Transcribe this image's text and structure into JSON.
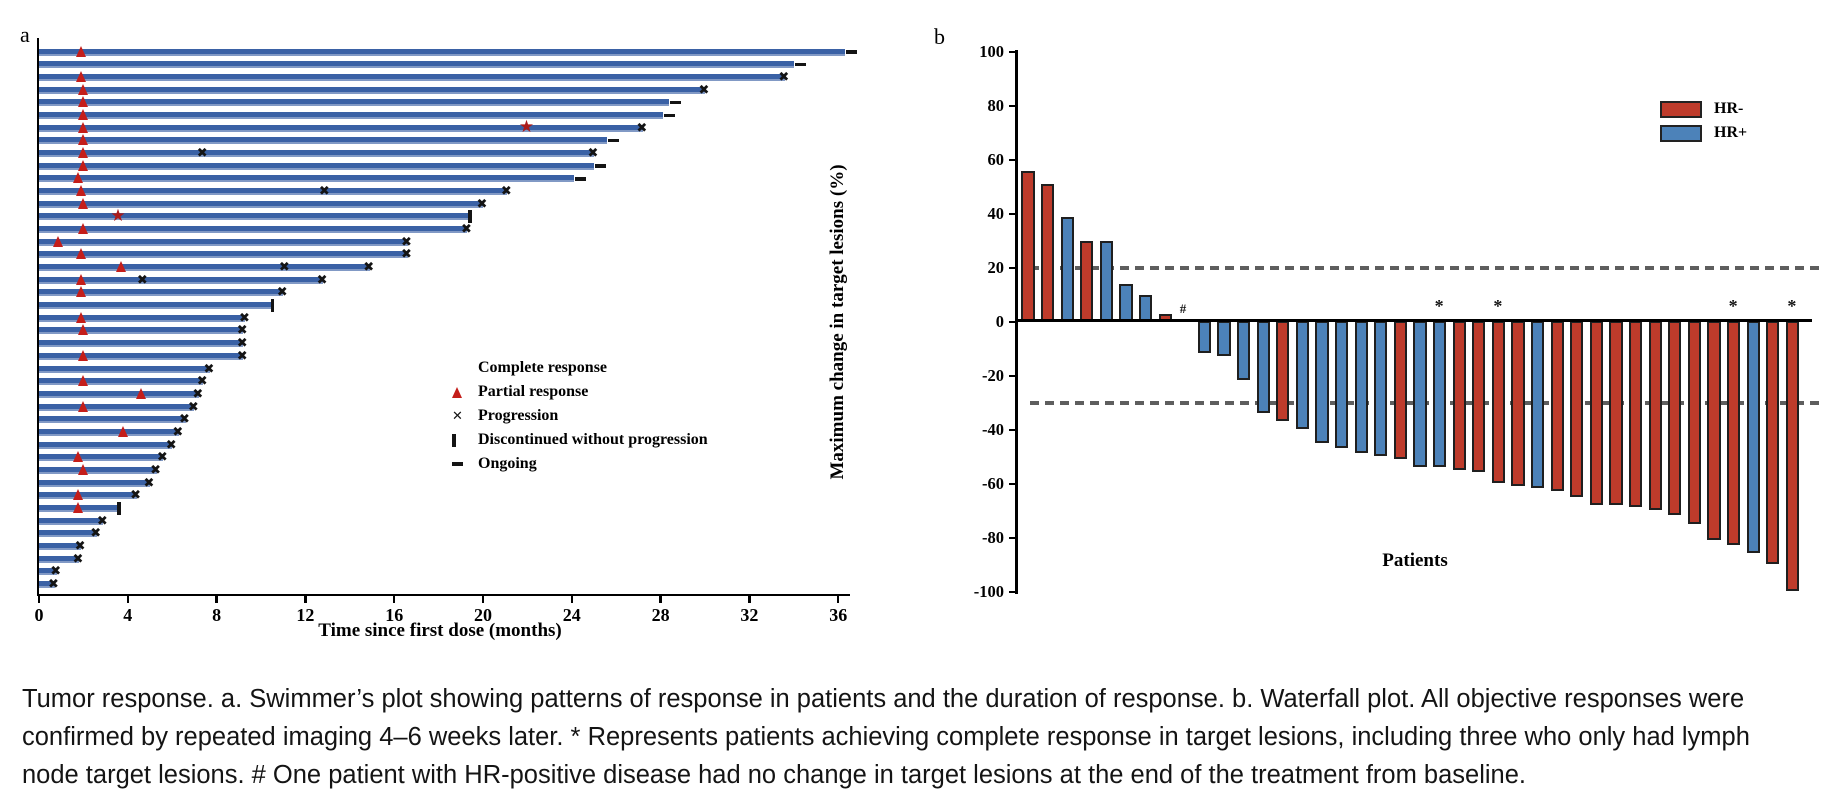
{
  "figure_caption": {
    "line1": "Tumor response. a. Swimmer’s plot showing patterns of response in patients and the duration of response. b. Waterfall plot. All objective responses were",
    "line2": "confirmed by repeated imaging 4–6 weeks later. * Represents patients achieving complete response in target lesions, including three who only had lymph",
    "line3": "node target lesions. # One patient with HR-positive disease had no change in target lesions at the end of the treatment from baseline."
  },
  "colors": {
    "swimmer_bar_blue": "#3a61a5",
    "partial_response_red": "#c41e1a",
    "complete_response_dark_red": "#ab1a1a",
    "marker_black": "#141414",
    "hr_negative_red": "#be3b2b",
    "hr_positive_blue": "#4c82b9",
    "dashed_gray": "#5e5e5e"
  },
  "chart_data": [
    {
      "type": "bar",
      "id": "swimmer",
      "panel_label": "a",
      "orientation": "horizontal",
      "xlabel": "Time since first dose (months)",
      "x_ticks": [
        0,
        4,
        8,
        12,
        16,
        20,
        24,
        28,
        32,
        36
      ],
      "xlim": [
        0,
        36.5
      ],
      "grid": false,
      "legend_position": "center-right",
      "legend": [
        {
          "symbol": "star",
          "label": "Complete response"
        },
        {
          "symbol": "triangle",
          "label": "Partial response"
        },
        {
          "symbol": "x",
          "label": "Progression"
        },
        {
          "symbol": "vbar",
          "label": "Discontinued without progression"
        },
        {
          "symbol": "dash",
          "label": "Ongoing"
        }
      ],
      "rows": [
        {
          "duration": 36.3,
          "partial_response": 1.9,
          "end": "ongoing"
        },
        {
          "duration": 34.0,
          "end": "ongoing"
        },
        {
          "duration": 33.6,
          "partial_response": 1.9,
          "end": "progression"
        },
        {
          "duration": 30.0,
          "partial_response": 2.0,
          "end": "progression"
        },
        {
          "duration": 28.4,
          "partial_response": 2.0,
          "end": "ongoing"
        },
        {
          "duration": 28.1,
          "partial_response": 2.0,
          "end": "ongoing"
        },
        {
          "duration": 27.2,
          "partial_response": 2.0,
          "complete_response": 22.0,
          "end": "progression"
        },
        {
          "duration": 25.6,
          "partial_response": 2.0,
          "end": "ongoing"
        },
        {
          "duration": 25.0,
          "partial_response": 2.0,
          "progression_marks": [
            7.4
          ],
          "end": "progression"
        },
        {
          "duration": 25.0,
          "partial_response": 2.0,
          "end": "ongoing"
        },
        {
          "duration": 24.1,
          "partial_response": 1.8,
          "end": "ongoing"
        },
        {
          "duration": 21.1,
          "partial_response": 1.9,
          "progression_marks": [
            12.9
          ],
          "end": "progression"
        },
        {
          "duration": 20.0,
          "partial_response": 2.0,
          "end": "progression"
        },
        {
          "duration": 19.4,
          "complete_response": 3.6,
          "end": "discontinued"
        },
        {
          "duration": 19.3,
          "partial_response": 2.0,
          "end": "progression"
        },
        {
          "duration": 16.6,
          "partial_response": 0.9,
          "end": "progression"
        },
        {
          "duration": 16.6,
          "partial_response": 1.9,
          "end": "progression"
        },
        {
          "duration": 14.9,
          "partial_response": 3.7,
          "progression_marks": [
            11.1
          ],
          "end": "progression"
        },
        {
          "duration": 12.8,
          "partial_response": 1.9,
          "progression_marks": [
            4.7
          ],
          "end": "progression"
        },
        {
          "duration": 11.0,
          "partial_response": 1.9,
          "end": "progression"
        },
        {
          "duration": 10.5,
          "end": "discontinued"
        },
        {
          "duration": 9.3,
          "partial_response": 1.9,
          "end": "progression"
        },
        {
          "duration": 9.2,
          "partial_response": 2.0,
          "end": "progression"
        },
        {
          "duration": 9.2,
          "end": "progression"
        },
        {
          "duration": 9.2,
          "partial_response": 2.0,
          "end": "progression"
        },
        {
          "duration": 7.7,
          "end": "progression"
        },
        {
          "duration": 7.4,
          "partial_response": 2.0,
          "end": "progression"
        },
        {
          "duration": 7.2,
          "partial_response": 4.6,
          "end": "progression"
        },
        {
          "duration": 7.0,
          "partial_response": 2.0,
          "end": "progression"
        },
        {
          "duration": 6.6,
          "end": "progression"
        },
        {
          "duration": 6.3,
          "partial_response": 3.8,
          "end": "progression"
        },
        {
          "duration": 6.0,
          "end": "progression"
        },
        {
          "duration": 5.6,
          "partial_response": 1.8,
          "end": "progression"
        },
        {
          "duration": 5.3,
          "partial_response": 2.0,
          "end": "progression"
        },
        {
          "duration": 5.0,
          "end": "progression"
        },
        {
          "duration": 4.4,
          "partial_response": 1.8,
          "end": "progression"
        },
        {
          "duration": 3.6,
          "partial_response": 1.8,
          "end": "discontinued"
        },
        {
          "duration": 2.9,
          "end": "progression"
        },
        {
          "duration": 2.6,
          "end": "progression"
        },
        {
          "duration": 1.9,
          "end": "progression"
        },
        {
          "duration": 1.8,
          "end": "progression"
        },
        {
          "duration": 0.8,
          "end": "progression"
        },
        {
          "duration": 0.7,
          "end": "progression"
        }
      ]
    },
    {
      "type": "bar",
      "id": "waterfall",
      "panel_label": "b",
      "orientation": "vertical",
      "ylabel": "Maximum change in target lesions (%)",
      "xlabel": "Patients",
      "ylim": [
        -100,
        100
      ],
      "y_ticks": [
        100,
        80,
        60,
        40,
        20,
        0,
        -20,
        -40,
        -60,
        -80,
        -100
      ],
      "reference_lines": [
        20,
        -30
      ],
      "grid": false,
      "legend_position": "top-right",
      "legend": [
        {
          "label": "HR-",
          "color_key": "hr_negative_red"
        },
        {
          "label": "HR+",
          "color_key": "hr_positive_blue"
        }
      ],
      "bars": [
        {
          "value": 56,
          "group": "HR-"
        },
        {
          "value": 51,
          "group": "HR-"
        },
        {
          "value": 39,
          "group": "HR+"
        },
        {
          "value": 30,
          "group": "HR-"
        },
        {
          "value": 30,
          "group": "HR+"
        },
        {
          "value": 14,
          "group": "HR+"
        },
        {
          "value": 10,
          "group": "HR+"
        },
        {
          "value": 3,
          "group": "HR-"
        },
        {
          "value": 0,
          "group": "HR+",
          "marker": "hash"
        },
        {
          "value": -12,
          "group": "HR+"
        },
        {
          "value": -13,
          "group": "HR+"
        },
        {
          "value": -22,
          "group": "HR+"
        },
        {
          "value": -34,
          "group": "HR+"
        },
        {
          "value": -37,
          "group": "HR-"
        },
        {
          "value": -40,
          "group": "HR+"
        },
        {
          "value": -45,
          "group": "HR+"
        },
        {
          "value": -47,
          "group": "HR+"
        },
        {
          "value": -49,
          "group": "HR+"
        },
        {
          "value": -50,
          "group": "HR+"
        },
        {
          "value": -51,
          "group": "HR-"
        },
        {
          "value": -54,
          "group": "HR+"
        },
        {
          "value": -54,
          "group": "HR+",
          "marker": "asterisk"
        },
        {
          "value": -55,
          "group": "HR-"
        },
        {
          "value": -56,
          "group": "HR-"
        },
        {
          "value": -60,
          "group": "HR-",
          "marker": "asterisk"
        },
        {
          "value": -61,
          "group": "HR-"
        },
        {
          "value": -62,
          "group": "HR+"
        },
        {
          "value": -63,
          "group": "HR-"
        },
        {
          "value": -65,
          "group": "HR-"
        },
        {
          "value": -68,
          "group": "HR-"
        },
        {
          "value": -68,
          "group": "HR-"
        },
        {
          "value": -69,
          "group": "HR-"
        },
        {
          "value": -70,
          "group": "HR-"
        },
        {
          "value": -72,
          "group": "HR-"
        },
        {
          "value": -75,
          "group": "HR-"
        },
        {
          "value": -81,
          "group": "HR-"
        },
        {
          "value": -83,
          "group": "HR-",
          "marker": "asterisk"
        },
        {
          "value": -86,
          "group": "HR+"
        },
        {
          "value": -90,
          "group": "HR-"
        },
        {
          "value": -100,
          "group": "HR-",
          "marker": "asterisk"
        }
      ]
    }
  ]
}
